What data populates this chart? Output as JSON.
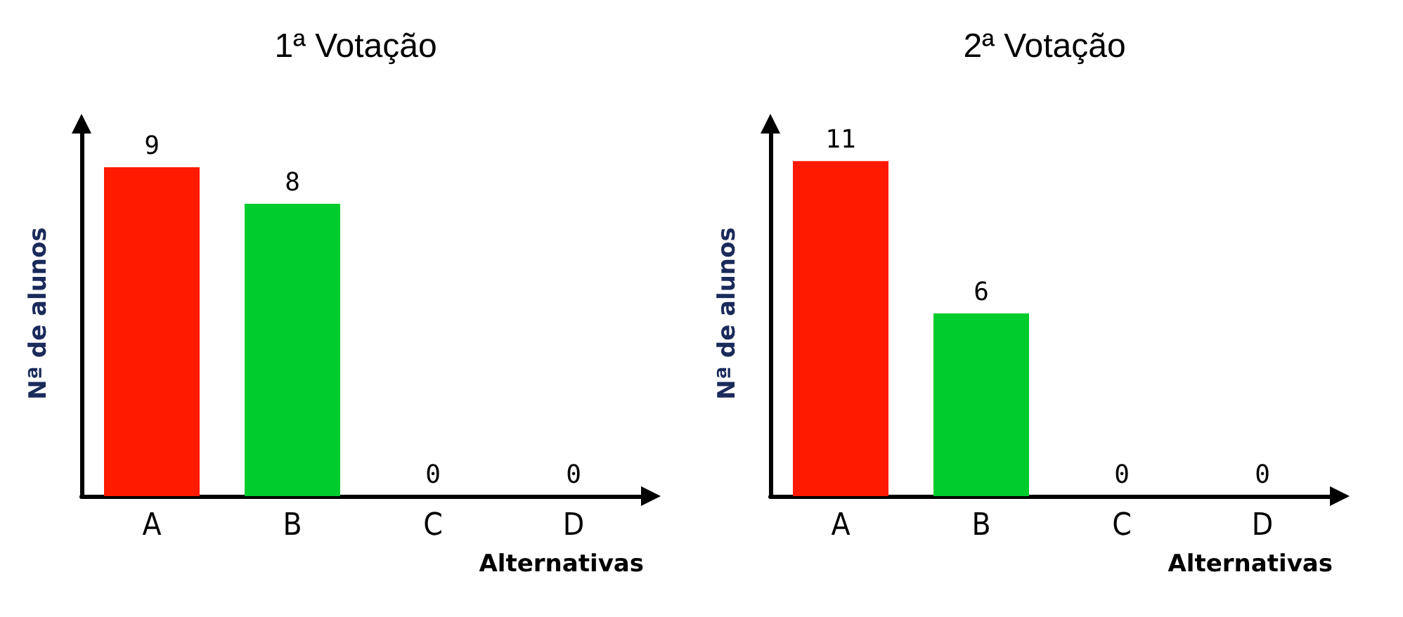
{
  "chart_data": [
    {
      "type": "bar",
      "title": "1ª Votação",
      "xlabel": "Alternativas",
      "ylabel": "Nª de alunos",
      "categories": [
        "A",
        "B",
        "C",
        "D"
      ],
      "values": [
        9,
        8,
        0,
        0
      ],
      "colors": [
        "#ff1a00",
        "#00cc2e",
        "#00cc2e",
        "#00cc2e"
      ],
      "data_labels": true,
      "tick_labels": "x"
    },
    {
      "type": "bar",
      "title": "2ª Votação",
      "xlabel": "Alternativas",
      "ylabel": "Nª de alunos",
      "categories": [
        "A",
        "B",
        "C",
        "D"
      ],
      "values": [
        11,
        6,
        0,
        0
      ],
      "colors": [
        "#ff1a00",
        "#00cc2e",
        "#00cc2e",
        "#00cc2e"
      ],
      "data_labels": true,
      "tick_labels": "x"
    }
  ]
}
